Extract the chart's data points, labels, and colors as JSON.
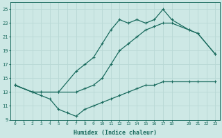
{
  "bg_color": "#cde8e5",
  "line_color": "#1a6b5e",
  "grid_color": "#b8d8d5",
  "xlabel": "Humidex (Indice chaleur)",
  "xlim": [
    -0.5,
    23.5
  ],
  "ylim": [
    9,
    26
  ],
  "yticks": [
    9,
    11,
    13,
    15,
    17,
    19,
    21,
    23,
    25
  ],
  "xticks": [
    0,
    1,
    2,
    3,
    4,
    5,
    6,
    7,
    8,
    9,
    10,
    11,
    12,
    13,
    14,
    15,
    16,
    17,
    18,
    20,
    21,
    22,
    23
  ],
  "line1_x": [
    0,
    2,
    3,
    5,
    7,
    8,
    9,
    10,
    11,
    12,
    13,
    14,
    15,
    16,
    17,
    18,
    20,
    21,
    23
  ],
  "line1_y": [
    14,
    13,
    13,
    13,
    16,
    17,
    18,
    20,
    22,
    23.5,
    23,
    23.5,
    23,
    23.5,
    25,
    23.5,
    22,
    21.5,
    18.5
  ],
  "line2_x": [
    0,
    2,
    3,
    5,
    7,
    8,
    9,
    10,
    11,
    12,
    13,
    14,
    15,
    16,
    17,
    18,
    20,
    21,
    23
  ],
  "line2_y": [
    14,
    13,
    13,
    13,
    13,
    13.5,
    14,
    15,
    17,
    19,
    20,
    21,
    22,
    22.5,
    23,
    23,
    22,
    21.5,
    18.5
  ],
  "line3_x": [
    0,
    2,
    3,
    4,
    5,
    6,
    7,
    8,
    9,
    10,
    11,
    12,
    13,
    14,
    15,
    16,
    17,
    18,
    20,
    21,
    23
  ],
  "line3_y": [
    14,
    13,
    12.5,
    12,
    10.5,
    10,
    9.5,
    10.5,
    11,
    11.5,
    12,
    12.5,
    13,
    13.5,
    14,
    14,
    14.5,
    14.5,
    14.5,
    14.5,
    14.5
  ]
}
